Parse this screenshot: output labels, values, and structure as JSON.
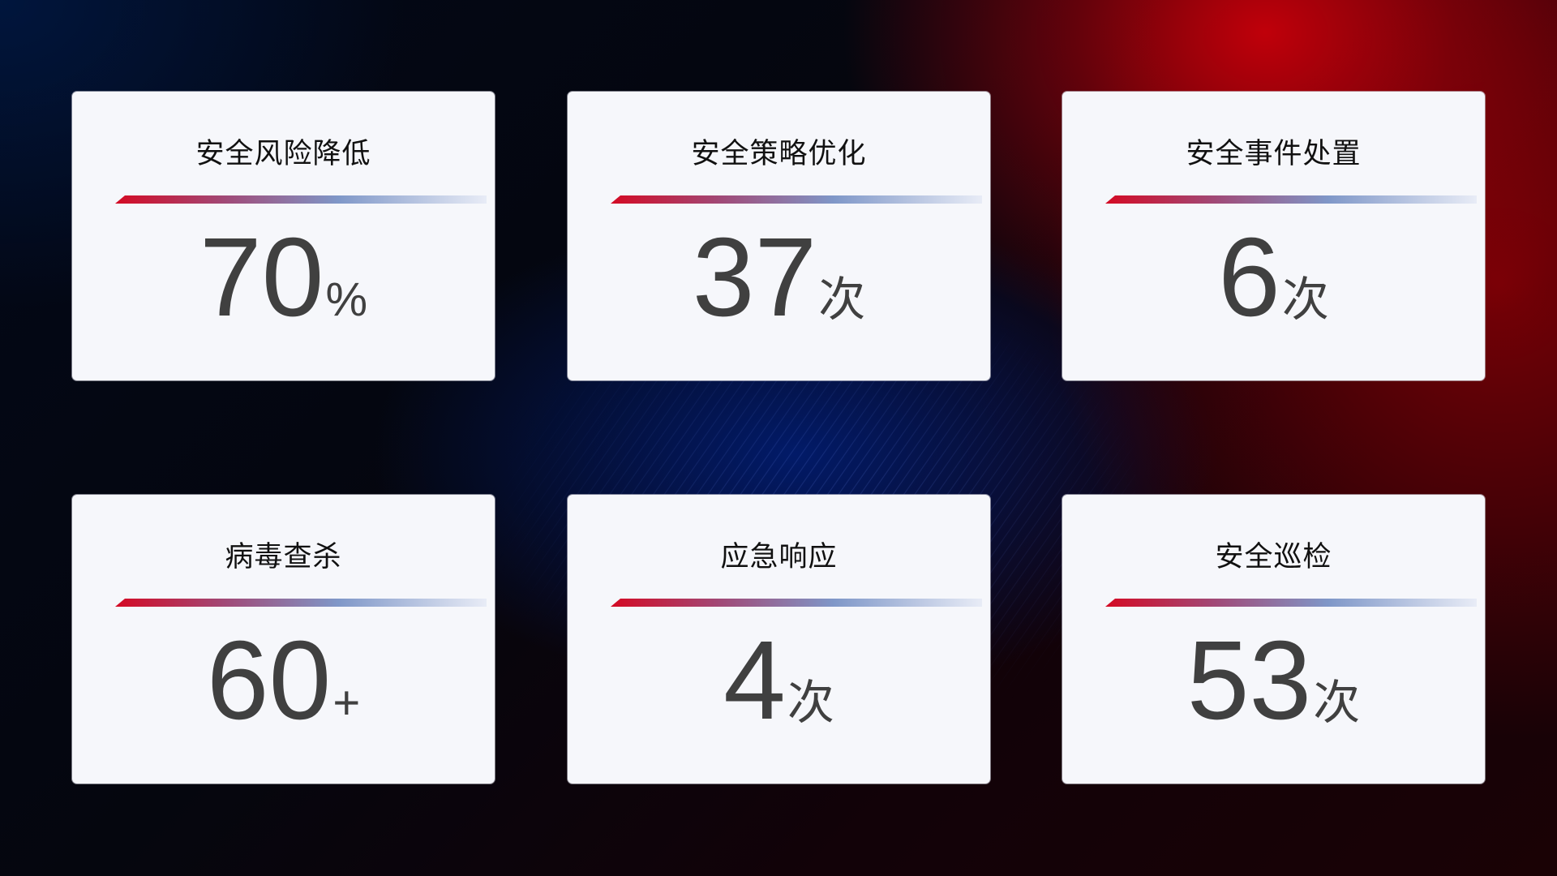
{
  "cards": [
    {
      "title": "安全风险降低",
      "value": "70",
      "unit": "%"
    },
    {
      "title": "安全策略优化",
      "value": "37",
      "unit": "次"
    },
    {
      "title": "安全事件处置",
      "value": "6",
      "unit": "次"
    },
    {
      "title": "病毒查杀",
      "value": "60",
      "unit": "+"
    },
    {
      "title": "应急响应",
      "value": "4",
      "unit": "次"
    },
    {
      "title": "安全巡检",
      "value": "53",
      "unit": "次"
    }
  ],
  "colors": {
    "accent_red": "#d40a24",
    "accent_blue": "#7f97c8",
    "card_bg": "#f6f7fb",
    "number": "#404040"
  }
}
